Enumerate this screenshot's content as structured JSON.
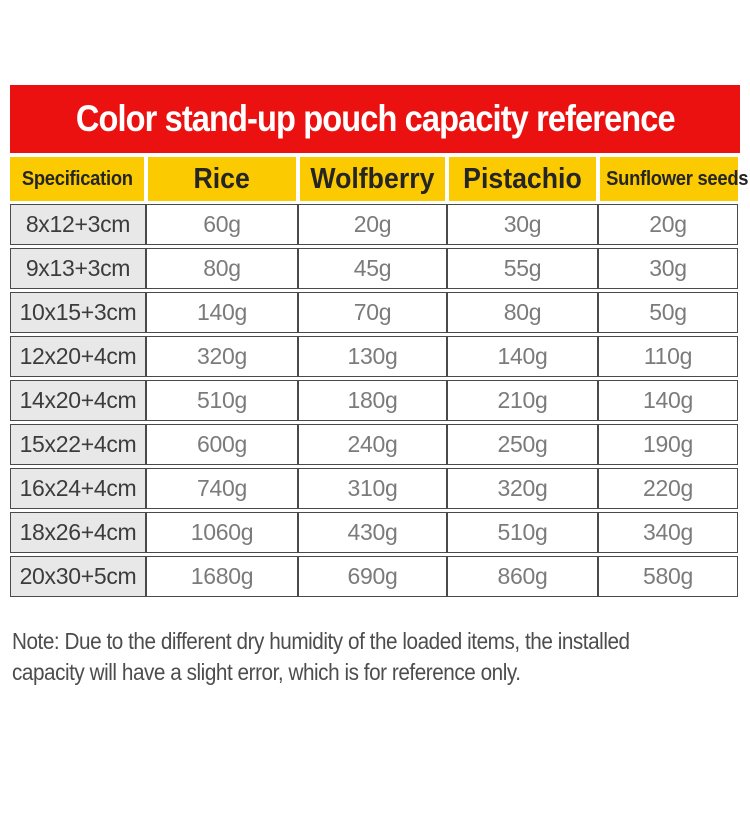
{
  "colors": {
    "red": "#ec1111",
    "yellow": "#fcca00",
    "line": "#4a4a4a",
    "spec-bg": "#e8e8e8",
    "spec-text": "#3c3c3c",
    "val-text": "#7b7b7b",
    "note-text": "#4d4d4d"
  },
  "banner": {
    "title": "Color stand-up pouch capacity reference"
  },
  "table": {
    "columns": [
      "Specification",
      "Rice",
      "Wolfberry",
      "Pistachio",
      "Sunflower seeds"
    ],
    "rows": [
      {
        "spec": "8x12+3cm",
        "values": [
          "60g",
          "20g",
          "30g",
          "20g"
        ]
      },
      {
        "spec": "9x13+3cm",
        "values": [
          "80g",
          "45g",
          "55g",
          "30g"
        ]
      },
      {
        "spec": "10x15+3cm",
        "values": [
          "140g",
          "70g",
          "80g",
          "50g"
        ]
      },
      {
        "spec": "12x20+4cm",
        "values": [
          "320g",
          "130g",
          "140g",
          "110g"
        ]
      },
      {
        "spec": "14x20+4cm",
        "values": [
          "510g",
          "180g",
          "210g",
          "140g"
        ]
      },
      {
        "spec": "15x22+4cm",
        "values": [
          "600g",
          "240g",
          "250g",
          "190g"
        ]
      },
      {
        "spec": "16x24+4cm",
        "values": [
          "740g",
          "310g",
          "320g",
          "220g"
        ]
      },
      {
        "spec": "18x26+4cm",
        "values": [
          "1060g",
          "430g",
          "510g",
          "340g"
        ]
      },
      {
        "spec": "20x30+5cm",
        "values": [
          "1680g",
          "690g",
          "860g",
          "580g"
        ]
      }
    ]
  },
  "note": {
    "line1": "Note: Due to the different dry humidity of the loaded items, the installed",
    "line2": "capacity will have a slight error, which is for reference only."
  },
  "chart_data": {
    "type": "table",
    "title": "Color stand-up pouch capacity reference",
    "columns": [
      "Specification",
      "Rice",
      "Wolfberry",
      "Pistachio",
      "Sunflower seeds"
    ],
    "rows": [
      [
        "8x12+3cm",
        "60g",
        "20g",
        "30g",
        "20g"
      ],
      [
        "9x13+3cm",
        "80g",
        "45g",
        "55g",
        "30g"
      ],
      [
        "10x15+3cm",
        "140g",
        "70g",
        "80g",
        "50g"
      ],
      [
        "12x20+4cm",
        "320g",
        "130g",
        "140g",
        "110g"
      ],
      [
        "14x20+4cm",
        "510g",
        "180g",
        "210g",
        "140g"
      ],
      [
        "15x22+4cm",
        "600g",
        "240g",
        "250g",
        "190g"
      ],
      [
        "16x24+4cm",
        "740g",
        "310g",
        "320g",
        "220g"
      ],
      [
        "18x26+4cm",
        "1060g",
        "430g",
        "510g",
        "340g"
      ],
      [
        "20x30+5cm",
        "1680g",
        "690g",
        "860g",
        "580g"
      ]
    ],
    "note": "Note: Due to the different dry humidity of the loaded items, the installed capacity will have a slight error, which is for reference only."
  }
}
